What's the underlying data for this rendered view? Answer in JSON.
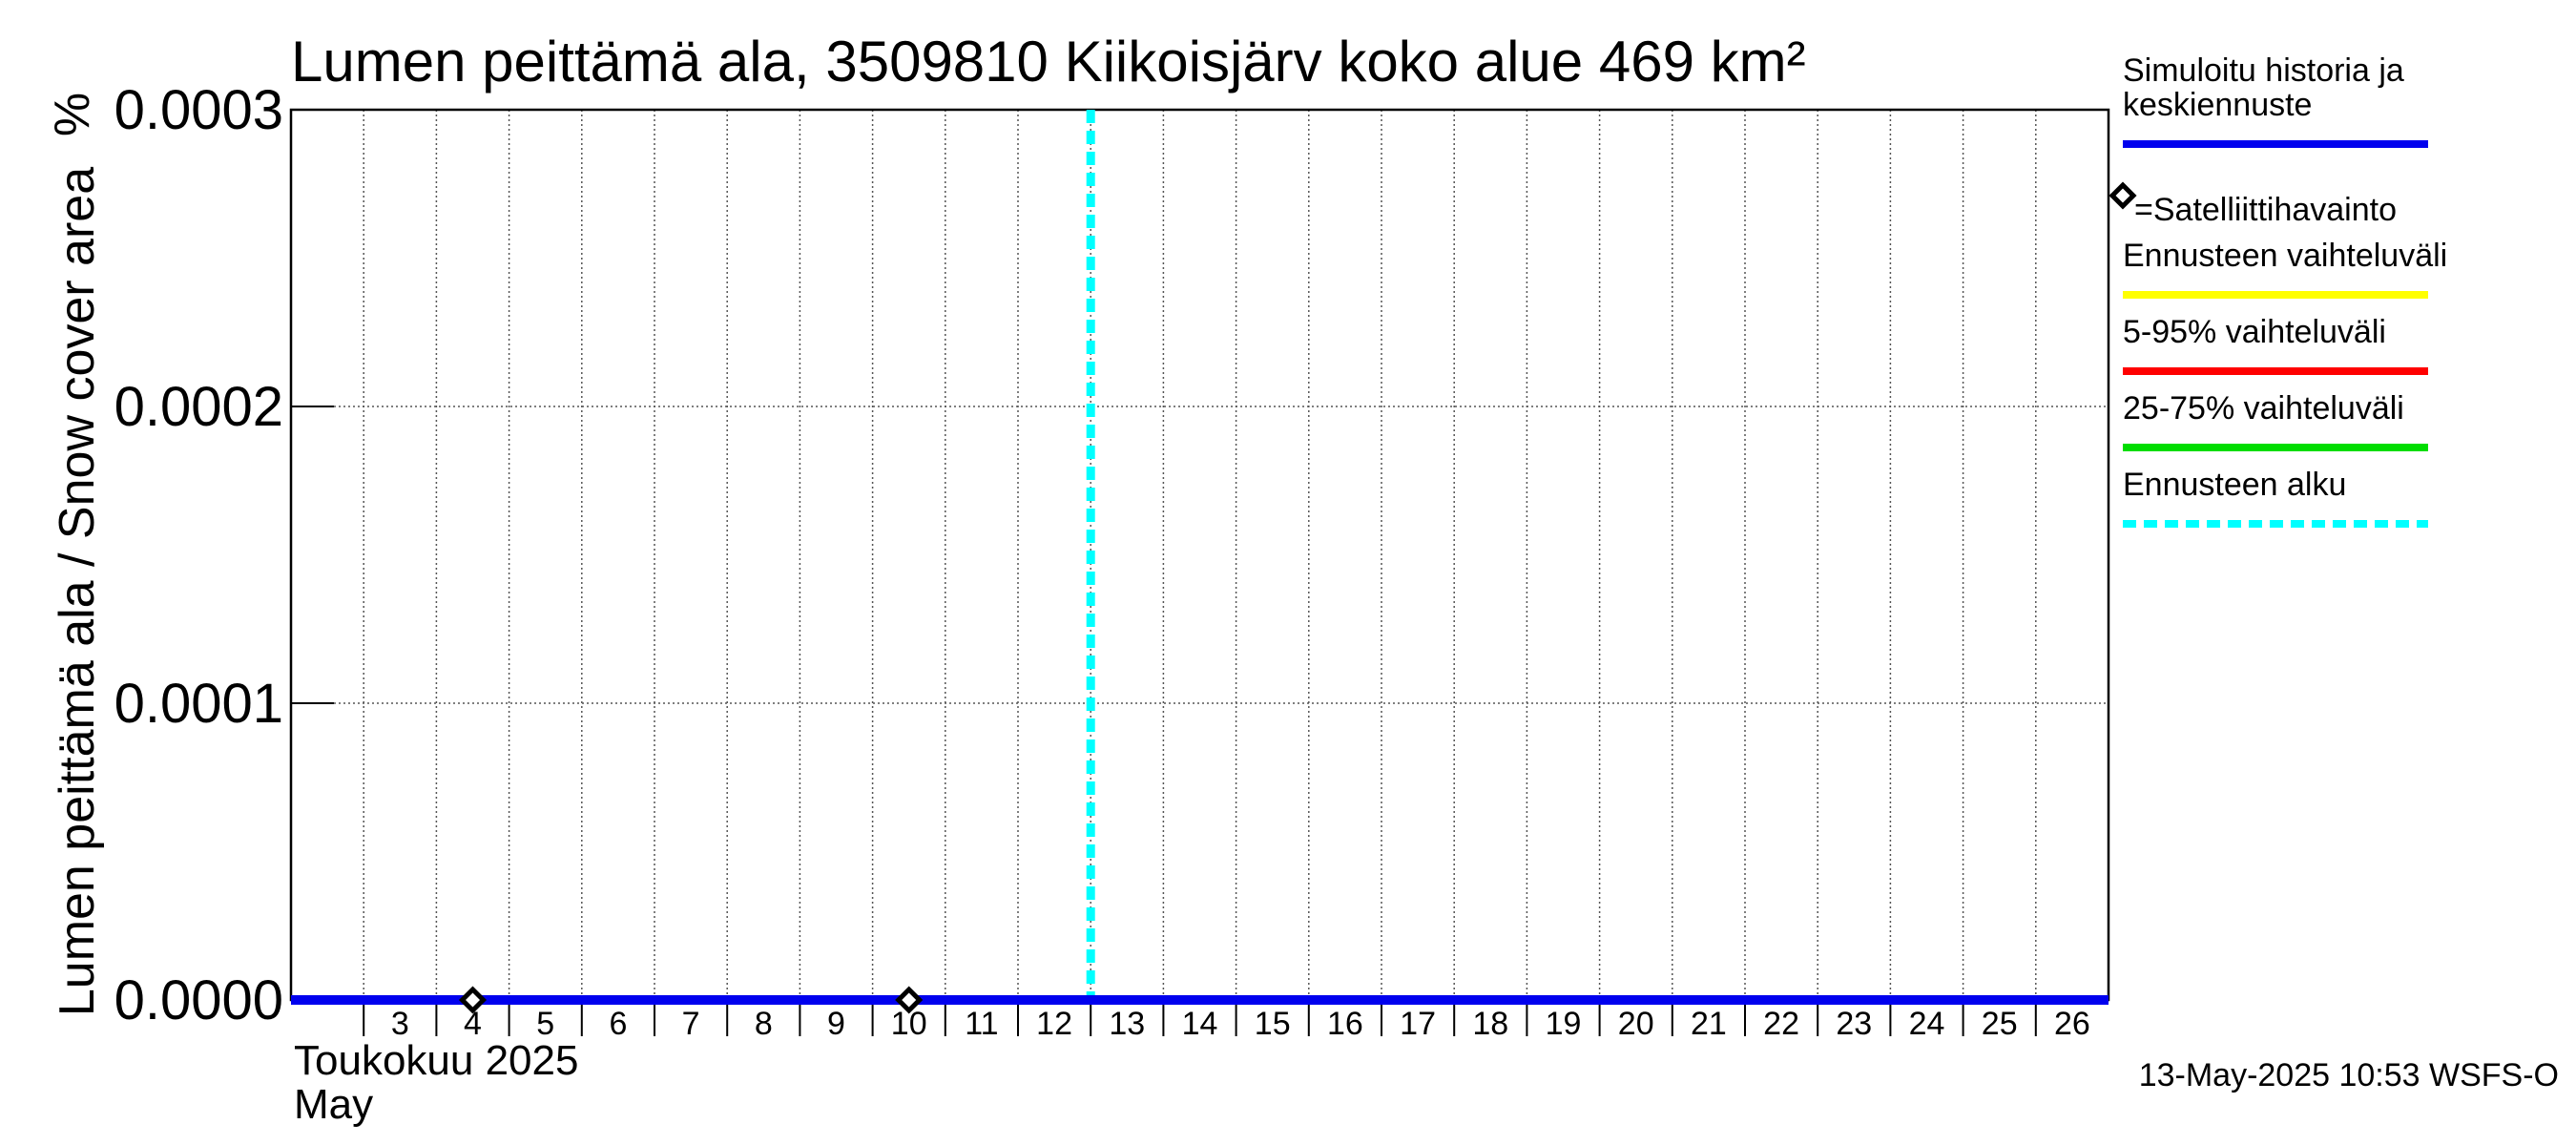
{
  "chart_data": {
    "type": "line",
    "title": "Lumen peittämä ala, 3509810 Kiikoisjärv koko alue 469 km²",
    "ylabel": "Lumen peittämä ala / Snow cover area",
    "yunit": "%",
    "ylim": [
      0,
      0.0003
    ],
    "yticks": [
      {
        "value": 0.0,
        "label": "0.0000"
      },
      {
        "value": 0.0001,
        "label": "0.0001"
      },
      {
        "value": 0.0002,
        "label": "0.0002"
      },
      {
        "value": 0.0003,
        "label": "0.0003"
      }
    ],
    "xlim": [
      "2025-05-02",
      "2025-05-26"
    ],
    "x_day_labels": [
      "3",
      "4",
      "5",
      "6",
      "7",
      "8",
      "9",
      "10",
      "11",
      "12",
      "13",
      "14",
      "15",
      "16",
      "17",
      "18",
      "19",
      "20",
      "21",
      "22",
      "23",
      "24",
      "25",
      "26"
    ],
    "x_month_label_fi": "Toukokuu  2025",
    "x_month_label_en": "May",
    "grid": true,
    "series": [
      {
        "name": "Simuloitu historia ja keskiennuste",
        "color": "#0000ee",
        "style": "solid",
        "x": [
          "2025-05-02",
          "2025-05-26"
        ],
        "y": [
          0.0,
          0.0
        ]
      },
      {
        "name": "=Satelliittihavainto",
        "color": "#000000",
        "style": "marker-diamond",
        "x": [
          "2025-05-04",
          "2025-05-10"
        ],
        "y": [
          0.0,
          0.0
        ]
      }
    ],
    "forecast_start": "2025-05-13",
    "legend_placement": "right",
    "legend": [
      {
        "label_lines": [
          "Simuloitu historia ja",
          "keskiennuste"
        ],
        "color": "#0000ee",
        "kind": "line"
      },
      {
        "label_lines": [
          "=Satelliittihavainto"
        ],
        "color": "#000000",
        "kind": "marker"
      },
      {
        "label_lines": [
          "Ennusteen vaihteluväli"
        ],
        "color": "#ffff00",
        "kind": "line"
      },
      {
        "label_lines": [
          "5-95% vaihteluväli"
        ],
        "color": "#ff0000",
        "kind": "line"
      },
      {
        "label_lines": [
          "25-75% vaihteluväli"
        ],
        "color": "#00dd00",
        "kind": "line"
      },
      {
        "label_lines": [
          "Ennusteen alku"
        ],
        "color": "#00ffff",
        "kind": "dashed"
      }
    ],
    "timestamp": "13-May-2025 10:53 WSFS-O"
  }
}
